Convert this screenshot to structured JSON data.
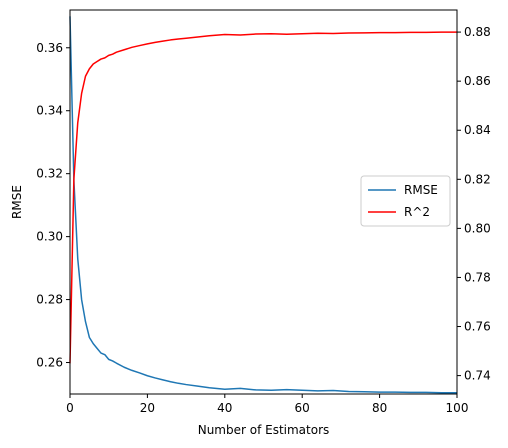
{
  "chart_data": {
    "type": "line",
    "xlabel": "Number of Estimators",
    "ylabel": "RMSE",
    "ylabel_right": "",
    "xlim": [
      0,
      100
    ],
    "ylim_left": [
      0.25,
      0.372
    ],
    "ylim_right": [
      0.7325,
      0.889
    ],
    "x_ticks": [
      0,
      20,
      40,
      60,
      80,
      100
    ],
    "y_ticks_left": [
      0.26,
      0.28,
      0.3,
      0.32,
      0.34,
      0.36
    ],
    "y_ticks_right": [
      0.74,
      0.76,
      0.78,
      0.8,
      0.82,
      0.84,
      0.86,
      0.88
    ],
    "grid": false,
    "legend_position": "center-right",
    "series": [
      {
        "name": "RMSE",
        "axis": "left",
        "color": "#1f77b4",
        "x": [
          0,
          1,
          2,
          3,
          4,
          5,
          6,
          7,
          8,
          9,
          10,
          11,
          12,
          14,
          16,
          18,
          20,
          22,
          24,
          26,
          28,
          30,
          33,
          36,
          40,
          44,
          48,
          52,
          56,
          60,
          64,
          68,
          72,
          76,
          80,
          84,
          88,
          92,
          96,
          100
        ],
        "values": [
          0.37,
          0.318,
          0.293,
          0.28,
          0.273,
          0.268,
          0.266,
          0.2645,
          0.263,
          0.2625,
          0.261,
          0.2605,
          0.2598,
          0.2585,
          0.2575,
          0.2567,
          0.2558,
          0.2551,
          0.2545,
          0.2539,
          0.2534,
          0.253,
          0.2525,
          0.252,
          0.2515,
          0.2518,
          0.2513,
          0.2512,
          0.2514,
          0.2512,
          0.251,
          0.2511,
          0.2508,
          0.2507,
          0.2506,
          0.2506,
          0.2505,
          0.2505,
          0.2504,
          0.2504
        ]
      },
      {
        "name": "R^2",
        "axis": "right",
        "color": "#ff0000",
        "x": [
          0,
          1,
          2,
          3,
          4,
          5,
          6,
          7,
          8,
          9,
          10,
          11,
          12,
          14,
          16,
          18,
          20,
          22,
          24,
          26,
          28,
          30,
          33,
          36,
          40,
          44,
          48,
          52,
          56,
          60,
          64,
          68,
          72,
          76,
          80,
          84,
          88,
          92,
          96,
          100
        ],
        "values": [
          0.745,
          0.82,
          0.843,
          0.855,
          0.862,
          0.865,
          0.867,
          0.868,
          0.869,
          0.8695,
          0.8705,
          0.871,
          0.8718,
          0.8728,
          0.8738,
          0.8745,
          0.8752,
          0.8758,
          0.8763,
          0.8768,
          0.8772,
          0.8775,
          0.878,
          0.8785,
          0.879,
          0.8788,
          0.8792,
          0.8793,
          0.8791,
          0.8793,
          0.8795,
          0.8794,
          0.8796,
          0.8797,
          0.8798,
          0.8798,
          0.8799,
          0.8799,
          0.88,
          0.88
        ]
      }
    ]
  }
}
